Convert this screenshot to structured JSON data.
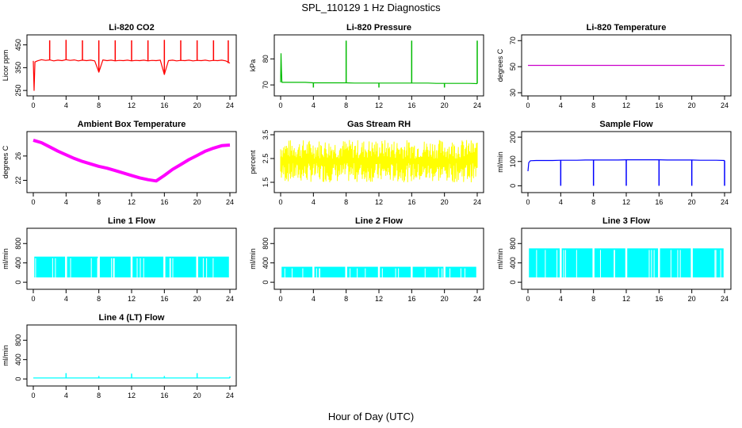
{
  "title": "SPL_110129  1 Hz Diagnostics",
  "xlabel": "Hour of Day (UTC)",
  "chart_data": [
    {
      "type": "line",
      "title": "Li-820 CO2",
      "ylabel": "Licor ppm",
      "color": "#ff0000",
      "xlim": [
        0,
        24
      ],
      "ylim": [
        240,
        480
      ],
      "xticks": [
        0,
        4,
        8,
        12,
        16,
        20,
        24
      ],
      "yticks": [
        250,
        350,
        450
      ],
      "x": [
        0,
        0.1,
        0.2,
        0.5,
        1,
        1.5,
        2,
        2.5,
        3,
        3.5,
        4,
        4.5,
        5,
        5.5,
        6,
        6.5,
        7,
        7.5,
        8,
        8.5,
        9,
        9.5,
        10,
        10.5,
        11,
        11.5,
        12,
        12.5,
        13,
        13.5,
        14,
        14.5,
        15,
        15.5,
        16,
        16.5,
        17,
        17.5,
        18,
        18.5,
        19,
        19.5,
        20,
        20.5,
        21,
        21.5,
        22,
        22.5,
        23,
        23.5,
        24
      ],
      "values": [
        380,
        250,
        375,
        380,
        385,
        382,
        384,
        380,
        383,
        381,
        385,
        382,
        384,
        380,
        383,
        381,
        383,
        380,
        330,
        384,
        381,
        383,
        380,
        382,
        381,
        383,
        380,
        382,
        381,
        383,
        380,
        382,
        381,
        383,
        320,
        381,
        383,
        380,
        382,
        381,
        383,
        380,
        382,
        381,
        383,
        380,
        382,
        381,
        383,
        380,
        370
      ],
      "spikes": [
        {
          "x": 2,
          "y": 470
        },
        {
          "x": 4,
          "y": 472
        },
        {
          "x": 6,
          "y": 470
        },
        {
          "x": 8,
          "y": 470
        },
        {
          "x": 10,
          "y": 470
        },
        {
          "x": 12,
          "y": 470
        },
        {
          "x": 14,
          "y": 470
        },
        {
          "x": 16,
          "y": 472
        },
        {
          "x": 18,
          "y": 470
        },
        {
          "x": 20,
          "y": 470
        },
        {
          "x": 22,
          "y": 470
        },
        {
          "x": 23.8,
          "y": 470
        }
      ]
    },
    {
      "type": "line",
      "title": "Li-820 Pressure",
      "ylabel": "kPa",
      "color": "#00bb00",
      "xlim": [
        0,
        24
      ],
      "ylim": [
        67,
        88
      ],
      "xticks": [
        0,
        4,
        8,
        12,
        16,
        20,
        24
      ],
      "yticks": [
        70,
        80
      ],
      "x": [
        0,
        0.05,
        0.1,
        0.15,
        0.3,
        1,
        2,
        3,
        4,
        5,
        6,
        7,
        8,
        9,
        10,
        11,
        12,
        13,
        14,
        15,
        16,
        17,
        18,
        19,
        20,
        21,
        22,
        23,
        24
      ],
      "values": [
        71,
        82,
        76,
        71,
        71,
        71,
        71,
        71,
        70.8,
        70.8,
        70.8,
        70.8,
        70.8,
        70.7,
        70.7,
        70.7,
        70.7,
        70.7,
        70.7,
        70.7,
        70.7,
        70.7,
        70.7,
        70.6,
        70.6,
        70.6,
        70.6,
        70.6,
        70.5
      ],
      "spikes": [
        {
          "x": 8,
          "y": 87
        },
        {
          "x": 16,
          "y": 87
        },
        {
          "x": 24,
          "y": 87
        },
        {
          "x": 4,
          "y": 69
        },
        {
          "x": 12,
          "y": 69
        },
        {
          "x": 20,
          "y": 69
        }
      ]
    },
    {
      "type": "line",
      "title": "Li-820 Temperature",
      "ylabel": "degrees C",
      "color": "#cc00cc",
      "xlim": [
        0,
        24
      ],
      "ylim": [
        30,
        72
      ],
      "xticks": [
        0,
        4,
        8,
        12,
        16,
        20,
        24
      ],
      "yticks": [
        30,
        50,
        70
      ],
      "x": [
        0,
        24
      ],
      "values": [
        51,
        51
      ],
      "spikes": []
    },
    {
      "type": "line",
      "title": "Ambient Box Temperature",
      "ylabel": "degrees C",
      "color": "#ff00ff",
      "xlim": [
        0,
        24
      ],
      "ylim": [
        20.5,
        29.5
      ],
      "xticks": [
        0,
        4,
        8,
        12,
        16,
        20,
        24
      ],
      "yticks": [
        22,
        26
      ],
      "x": [
        0,
        1,
        2,
        3,
        4,
        5,
        6,
        7,
        8,
        9,
        10,
        11,
        12,
        13,
        14,
        15,
        16,
        17,
        18,
        19,
        20,
        21,
        22,
        23,
        24
      ],
      "values": [
        28.6,
        28.2,
        27.5,
        26.8,
        26.2,
        25.6,
        25.1,
        24.7,
        24.3,
        24.0,
        23.6,
        23.2,
        22.8,
        22.4,
        22.1,
        21.9,
        22.8,
        23.8,
        24.6,
        25.4,
        26.1,
        26.8,
        27.3,
        27.7,
        27.8
      ],
      "spikes": []
    },
    {
      "type": "line",
      "title": "Gas Stream RH",
      "ylabel": "percent",
      "color": "#ffff00",
      "xlim": [
        0,
        24
      ],
      "ylim": [
        1.2,
        3.5
      ],
      "xticks": [
        0,
        4,
        8,
        12,
        16,
        20,
        24
      ],
      "yticks": [
        1.5,
        2.5,
        3.5
      ],
      "band": [
        1.5,
        3.3
      ],
      "x": [],
      "values": [],
      "spikes": []
    },
    {
      "type": "line",
      "title": "Sample Flow",
      "ylabel": "ml/min",
      "color": "#0000ff",
      "xlim": [
        0,
        24
      ],
      "ylim": [
        -15,
        210
      ],
      "xticks": [
        0,
        4,
        8,
        12,
        16,
        20,
        24
      ],
      "yticks": [
        0,
        100,
        200
      ],
      "x": [
        0,
        0.1,
        0.3,
        1,
        2,
        3,
        4,
        5,
        6,
        7,
        8,
        9,
        10,
        11,
        12,
        13,
        14,
        15,
        16,
        17,
        18,
        19,
        20,
        21,
        22,
        23,
        24
      ],
      "values": [
        60,
        95,
        103,
        104,
        104,
        104,
        105,
        105,
        105,
        106,
        106,
        106,
        106,
        106,
        107,
        107,
        107,
        107,
        107,
        106,
        106,
        106,
        106,
        105,
        105,
        105,
        104
      ],
      "spikes": [
        {
          "x": 4,
          "y": 0
        },
        {
          "x": 8,
          "y": 0
        },
        {
          "x": 12,
          "y": 0
        },
        {
          "x": 16,
          "y": 0
        },
        {
          "x": 20,
          "y": 0
        },
        {
          "x": 24,
          "y": 0
        }
      ]
    },
    {
      "type": "line",
      "title": "Line 1 Flow",
      "ylabel": "ml/min",
      "color": "#00ffff",
      "xlim": [
        0,
        24
      ],
      "ylim": [
        -80,
        1050
      ],
      "xticks": [
        0,
        4,
        8,
        12,
        16,
        20,
        24
      ],
      "yticks": [
        0,
        400,
        800
      ],
      "band": [
        100,
        530
      ],
      "gaps": [
        4,
        8,
        12,
        16,
        20
      ],
      "x": [],
      "values": [],
      "spikes": []
    },
    {
      "type": "line",
      "title": "Line 2 Flow",
      "ylabel": "ml/min",
      "color": "#00ffff",
      "xlim": [
        0,
        24
      ],
      "ylim": [
        -80,
        1050
      ],
      "xticks": [
        0,
        4,
        8,
        12,
        16,
        20,
        24
      ],
      "yticks": [
        0,
        400,
        800
      ],
      "band": [
        100,
        320
      ],
      "gaps": [
        4,
        8,
        12,
        16,
        20
      ],
      "x": [],
      "values": [],
      "spikes": []
    },
    {
      "type": "line",
      "title": "Line 3 Flow",
      "ylabel": "ml/min",
      "color": "#00ffff",
      "xlim": [
        0,
        24
      ],
      "ylim": [
        -80,
        1050
      ],
      "xticks": [
        0,
        4,
        8,
        12,
        16,
        20,
        24
      ],
      "yticks": [
        0,
        400,
        800
      ],
      "band": [
        100,
        700
      ],
      "gaps": [
        4,
        8,
        12,
        16,
        20
      ],
      "x": [],
      "values": [],
      "spikes": []
    },
    {
      "type": "line",
      "title": "Line 4 (LT) Flow",
      "ylabel": "ml/min",
      "color": "#00ffff",
      "xlim": [
        0,
        24
      ],
      "ylim": [
        -80,
        1050
      ],
      "xticks": [
        0,
        4,
        8,
        12,
        16,
        20,
        24
      ],
      "yticks": [
        0,
        400,
        800
      ],
      "x": [
        0,
        24
      ],
      "values": [
        20,
        20
      ],
      "spikes": [
        {
          "x": 4,
          "y": 120
        },
        {
          "x": 8,
          "y": 60
        },
        {
          "x": 12,
          "y": 110
        },
        {
          "x": 16,
          "y": 60
        },
        {
          "x": 20,
          "y": 120
        },
        {
          "x": 24,
          "y": 50
        }
      ]
    }
  ]
}
